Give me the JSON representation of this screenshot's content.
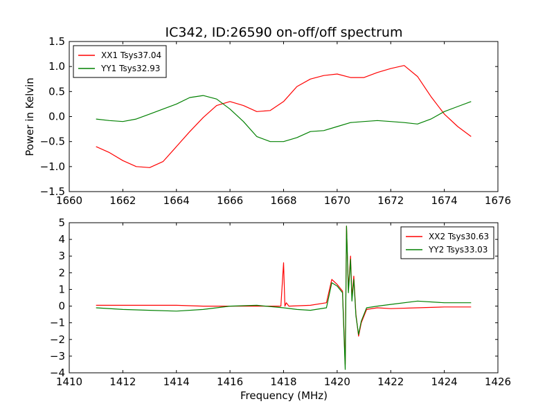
{
  "chart_data": [
    {
      "type": "line",
      "title": "IC342, ID:26590 on-off/off spectrum",
      "xlabel": "",
      "ylabel": "Power in Kelvin",
      "xlim": [
        1660,
        1676
      ],
      "ylim": [
        -1.5,
        1.5
      ],
      "xticks": [
        "1660",
        "1662",
        "1664",
        "1666",
        "1668",
        "1670",
        "1672",
        "1674",
        "1676"
      ],
      "yticks": [
        "1.5",
        "1.0",
        "0.5",
        "0.0",
        "−0.5",
        "−1.0",
        "−1.5"
      ],
      "legend_position": "top-left",
      "grid": false,
      "series": [
        {
          "name": "XX1 Tsys37.04",
          "color": "#ff0000",
          "x": [
            1661,
            1661.5,
            1662,
            1662.5,
            1663,
            1663.5,
            1664,
            1664.5,
            1665,
            1665.5,
            1666,
            1666.5,
            1667,
            1667.5,
            1668,
            1668.5,
            1669,
            1669.5,
            1670,
            1670.5,
            1671,
            1671.5,
            1672,
            1672.5,
            1673,
            1673.5,
            1674,
            1674.5,
            1675
          ],
          "values": [
            -0.6,
            -0.72,
            -0.88,
            -1.0,
            -1.02,
            -0.9,
            -0.6,
            -0.3,
            -0.02,
            0.22,
            0.3,
            0.22,
            0.1,
            0.12,
            0.3,
            0.6,
            0.75,
            0.82,
            0.85,
            0.78,
            0.78,
            0.88,
            0.96,
            1.02,
            0.8,
            0.4,
            0.05,
            -0.2,
            -0.4
          ]
        },
        {
          "name": "YY1 Tsys32.93",
          "color": "#008000",
          "x": [
            1661,
            1661.5,
            1662,
            1662.5,
            1663,
            1663.5,
            1664,
            1664.5,
            1665,
            1665.5,
            1666,
            1666.5,
            1667,
            1667.5,
            1668,
            1668.5,
            1669,
            1669.5,
            1670,
            1670.5,
            1671,
            1671.5,
            1672,
            1672.5,
            1673,
            1673.5,
            1674,
            1674.5,
            1675
          ],
          "values": [
            -0.05,
            -0.08,
            -0.1,
            -0.05,
            0.05,
            0.15,
            0.25,
            0.38,
            0.42,
            0.35,
            0.15,
            -0.1,
            -0.4,
            -0.5,
            -0.5,
            -0.42,
            -0.3,
            -0.28,
            -0.2,
            -0.12,
            -0.1,
            -0.08,
            -0.1,
            -0.12,
            -0.15,
            -0.05,
            0.1,
            0.2,
            0.3
          ]
        }
      ]
    },
    {
      "type": "line",
      "title": "",
      "xlabel": "Frequency (MHz)",
      "ylabel": "",
      "xlim": [
        1410,
        1426
      ],
      "ylim": [
        -4,
        5
      ],
      "xticks": [
        "1410",
        "1412",
        "1414",
        "1416",
        "1418",
        "1420",
        "1422",
        "1424",
        "1426"
      ],
      "yticks": [
        "5",
        "4",
        "3",
        "2",
        "1",
        "0",
        "−1",
        "−2",
        "−3",
        "−4"
      ],
      "legend_position": "top-right",
      "grid": false,
      "series": [
        {
          "name": "XX2 Tsys30.63",
          "color": "#ff0000",
          "x": [
            1411,
            1412,
            1413,
            1414,
            1415,
            1416,
            1417,
            1417.9,
            1418.0,
            1418.05,
            1418.1,
            1418.2,
            1419,
            1419.6,
            1419.8,
            1420.0,
            1420.1,
            1420.2,
            1420.3,
            1420.35,
            1420.42,
            1420.5,
            1420.55,
            1420.62,
            1420.7,
            1420.8,
            1420.9,
            1421.1,
            1421.5,
            1422,
            1423,
            1424,
            1425
          ],
          "values": [
            0.05,
            0.05,
            0.05,
            0.05,
            0.0,
            0.0,
            0.0,
            0.0,
            2.6,
            0.0,
            0.2,
            0.0,
            0.05,
            0.2,
            1.6,
            1.3,
            1.1,
            0.9,
            -3.5,
            4.8,
            1.0,
            3.0,
            0.5,
            1.8,
            -0.5,
            -1.8,
            -1.0,
            -0.2,
            -0.1,
            -0.15,
            -0.1,
            -0.05,
            -0.05
          ]
        },
        {
          "name": "YY2 Tsys33.03",
          "color": "#008000",
          "x": [
            1411,
            1412,
            1413,
            1414,
            1415,
            1416,
            1417,
            1418,
            1418.5,
            1419,
            1419.6,
            1419.8,
            1420.0,
            1420.1,
            1420.2,
            1420.3,
            1420.35,
            1420.42,
            1420.5,
            1420.55,
            1420.62,
            1420.7,
            1420.8,
            1420.9,
            1421.1,
            1421.5,
            1422,
            1423,
            1424,
            1425
          ],
          "values": [
            -0.1,
            -0.2,
            -0.25,
            -0.3,
            -0.2,
            0.0,
            0.05,
            -0.1,
            -0.2,
            -0.25,
            -0.1,
            1.4,
            1.2,
            1.0,
            0.8,
            -3.8,
            4.8,
            0.8,
            2.8,
            0.3,
            1.6,
            -0.6,
            -1.7,
            -0.9,
            -0.1,
            0.0,
            0.1,
            0.3,
            0.2,
            0.2
          ]
        }
      ]
    }
  ]
}
